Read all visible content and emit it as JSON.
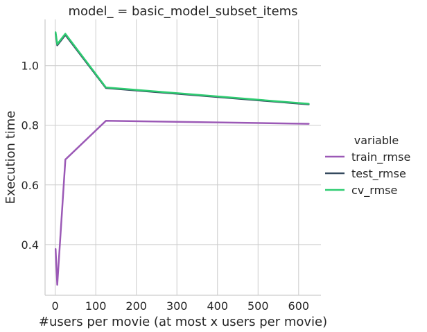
{
  "chart_data": {
    "type": "line",
    "title": "model_ = basic_model_subset_items",
    "xlabel": "#users per movie (at most x users per movie)",
    "ylabel": "Execution time",
    "xlim": [
      -25,
      655
    ],
    "ylim": [
      0.23,
      1.155
    ],
    "xticks": [
      0,
      100,
      200,
      300,
      400,
      500,
      600
    ],
    "yticks": [
      0.4,
      0.6,
      0.8,
      1.0
    ],
    "ytick_labels": [
      "0.4",
      "0.6",
      "0.8",
      "1.0"
    ],
    "grid": true,
    "legend": {
      "title": "variable",
      "placement": "right"
    },
    "x": [
      1,
      5,
      25,
      125,
      625
    ],
    "series": [
      {
        "name": "train_rmse",
        "color": "#9b59b6",
        "values": [
          0.385,
          0.265,
          0.685,
          0.815,
          0.805
        ]
      },
      {
        "name": "test_rmse",
        "color": "#34495e",
        "values": [
          1.108,
          1.068,
          1.103,
          0.925,
          0.87
        ]
      },
      {
        "name": "cv_rmse",
        "color": "#2ecc71",
        "values": [
          1.112,
          1.072,
          1.107,
          0.927,
          0.872
        ]
      }
    ]
  }
}
